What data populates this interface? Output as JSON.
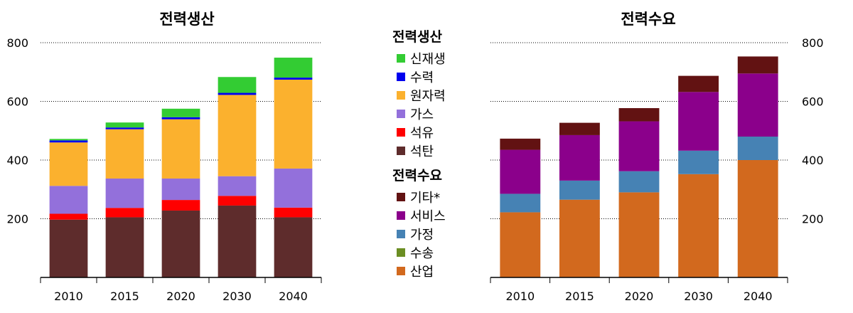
{
  "chart_data": [
    {
      "type": "bar",
      "stacked": true,
      "title": "전력생산",
      "categories": [
        "2010",
        "2015",
        "2020",
        "2030",
        "2040"
      ],
      "ylim": [
        0,
        800
      ],
      "yticks": [
        200,
        400,
        600,
        800
      ],
      "yaxis_side": "left",
      "grid": "dotted horizontal",
      "series": [
        {
          "name": "석탄",
          "color": "#5e2c2c",
          "values": [
            197,
            205,
            228,
            245,
            205
          ]
        },
        {
          "name": "석유",
          "color": "#ff0000",
          "values": [
            20,
            32,
            36,
            33,
            33
          ]
        },
        {
          "name": "가스",
          "color": "#9370db",
          "values": [
            95,
            100,
            73,
            67,
            133
          ]
        },
        {
          "name": "원자력",
          "color": "#fbb12e",
          "values": [
            148,
            168,
            202,
            277,
            303
          ]
        },
        {
          "name": "수력",
          "color": "#0000ee",
          "values": [
            7,
            6,
            7,
            7,
            7
          ]
        },
        {
          "name": "신재생",
          "color": "#33cc33",
          "values": [
            5,
            17,
            29,
            54,
            68
          ]
        }
      ]
    },
    {
      "type": "bar",
      "stacked": true,
      "title": "전력수요",
      "categories": [
        "2010",
        "2015",
        "2020",
        "2030",
        "2040"
      ],
      "ylim": [
        0,
        800
      ],
      "yticks": [
        200,
        400,
        600,
        800
      ],
      "yaxis_side": "right",
      "grid": "dotted horizontal",
      "series": [
        {
          "name": "산업",
          "color": "#d2691e",
          "values": [
            222,
            265,
            290,
            352,
            400
          ]
        },
        {
          "name": "수송",
          "color": "#6b8e23",
          "values": [
            0,
            0,
            0,
            0,
            0
          ]
        },
        {
          "name": "가정",
          "color": "#4682b4",
          "values": [
            63,
            65,
            72,
            80,
            80
          ]
        },
        {
          "name": "서비스",
          "color": "#8b008b",
          "values": [
            150,
            155,
            170,
            200,
            215
          ]
        },
        {
          "name": "기타*",
          "color": "#621212",
          "values": [
            38,
            42,
            45,
            55,
            58
          ]
        }
      ]
    }
  ],
  "legend": {
    "groups": [
      {
        "title": "전력생산",
        "items": [
          {
            "label": "신재생",
            "color": "#33cc33"
          },
          {
            "label": "수력",
            "color": "#0000ee"
          },
          {
            "label": "원자력",
            "color": "#fbb12e"
          },
          {
            "label": "가스",
            "color": "#9370db"
          },
          {
            "label": "석유",
            "color": "#ff0000"
          },
          {
            "label": "석탄",
            "color": "#5e2c2c"
          }
        ]
      },
      {
        "title": "전력수요",
        "items": [
          {
            "label": "기타*",
            "color": "#621212"
          },
          {
            "label": "서비스",
            "color": "#8b008b"
          },
          {
            "label": "가정",
            "color": "#4682b4"
          },
          {
            "label": "수송",
            "color": "#6b8e23"
          },
          {
            "label": "산업",
            "color": "#d2691e"
          }
        ]
      }
    ]
  }
}
